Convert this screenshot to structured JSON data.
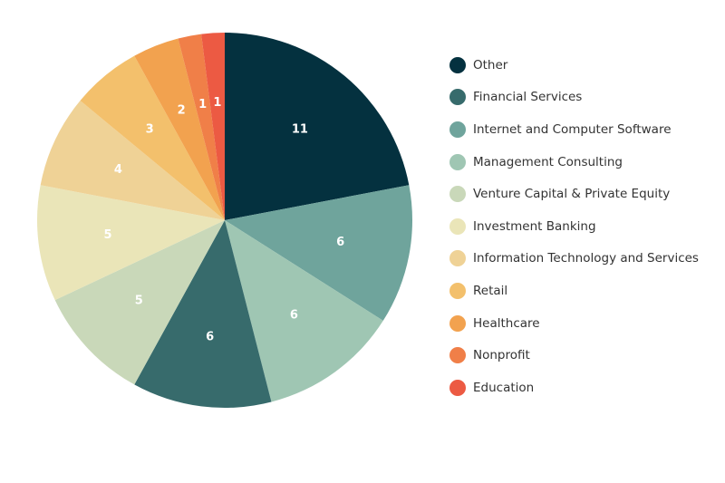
{
  "chart_data": {
    "type": "pie",
    "title": "",
    "start": "12 o'clock",
    "direction": "clockwise",
    "slice_labels": "values",
    "legend_position": "right",
    "slices": [
      {
        "label": "Other",
        "value": 11,
        "color": "#04313f"
      },
      {
        "label": "Internet and Computer Software",
        "value": 6,
        "color": "#6fa49c"
      },
      {
        "label": "Management Consulting",
        "value": 6,
        "color": "#9fc6b3"
      },
      {
        "label": "Financial Services",
        "value": 6,
        "color": "#376b6c"
      },
      {
        "label": "Venture Capital & Private Equity",
        "value": 5,
        "color": "#c9d8b9"
      },
      {
        "label": "Investment Banking",
        "value": 5,
        "color": "#eae5b8"
      },
      {
        "label": "Information Technology and Services",
        "value": 4,
        "color": "#efd296"
      },
      {
        "label": "Retail",
        "value": 3,
        "color": "#f3c06c"
      },
      {
        "label": "Healthcare",
        "value": 2,
        "color": "#f2a24f"
      },
      {
        "label": "Nonprofit",
        "value": 1,
        "color": "#f07f48"
      },
      {
        "label": "Education",
        "value": 1,
        "color": "#ec5a43"
      }
    ],
    "legend": [
      {
        "label": "Other",
        "color": "#04313f"
      },
      {
        "label": "Financial Services",
        "color": "#376b6c"
      },
      {
        "label": "Internet and Computer Software",
        "color": "#6fa49c"
      },
      {
        "label": "Management Consulting",
        "color": "#9fc6b3"
      },
      {
        "label": "Venture Capital & Private Equity",
        "color": "#c9d8b9"
      },
      {
        "label": "Investment Banking",
        "color": "#eae5b8"
      },
      {
        "label": "Information Technology and Services",
        "color": "#efd296"
      },
      {
        "label": "Retail",
        "color": "#f3c06c"
      },
      {
        "label": "Healthcare",
        "color": "#f2a24f"
      },
      {
        "label": "Nonprofit",
        "color": "#f07f48"
      },
      {
        "label": "Education",
        "color": "#ec5a43"
      }
    ]
  }
}
